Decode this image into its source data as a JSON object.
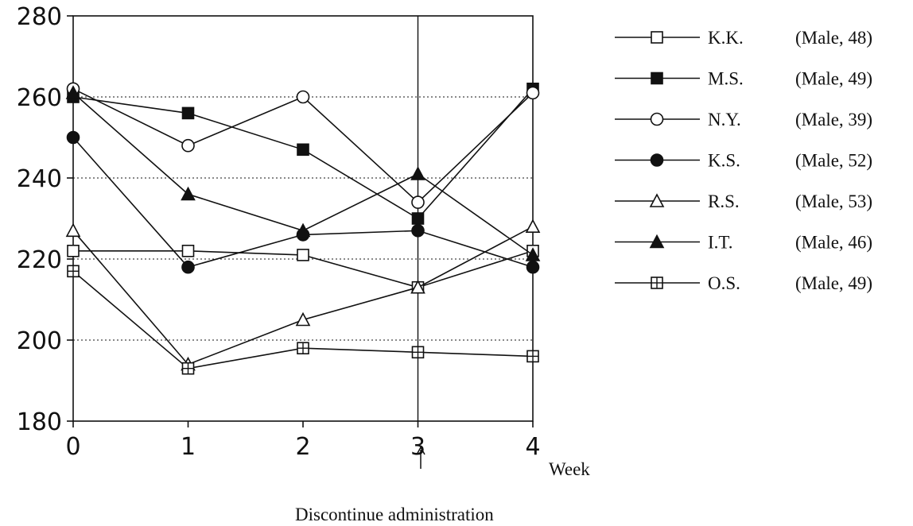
{
  "chart_data": {
    "type": "line",
    "xlabel": "Week",
    "annotation": "Discontinue administration",
    "x": [
      0,
      1,
      2,
      3,
      4
    ],
    "ylim": [
      180,
      280
    ],
    "yticks": [
      180,
      200,
      220,
      240,
      260,
      280
    ],
    "xticks": [
      0,
      1,
      2,
      3,
      4
    ],
    "grid": "horizontal dotted",
    "legend_position": "right",
    "series": [
      {
        "name": "K.K.",
        "note": "(Male, 48)",
        "marker": "open-square",
        "values": [
          222,
          222,
          221,
          213,
          222
        ]
      },
      {
        "name": "M.S.",
        "note": "(Male, 49)",
        "marker": "filled-square",
        "values": [
          260,
          256,
          247,
          230,
          262
        ]
      },
      {
        "name": "N.Y.",
        "note": "(Male, 39)",
        "marker": "open-circle",
        "values": [
          262,
          248,
          260,
          234,
          261
        ]
      },
      {
        "name": "K.S.",
        "note": "(Male, 52)",
        "marker": "filled-circle",
        "values": [
          250,
          218,
          226,
          227,
          218
        ]
      },
      {
        "name": "R.S.",
        "note": "(Male, 53)",
        "marker": "open-triangle",
        "values": [
          227,
          194,
          205,
          213,
          228
        ]
      },
      {
        "name": "I.T.",
        "note": "(Male, 46)",
        "marker": "filled-triangle",
        "values": [
          261,
          236,
          227,
          241,
          221
        ]
      },
      {
        "name": "O.S.",
        "note": "(Male, 49)",
        "marker": "crossed-square",
        "values": [
          217,
          193,
          198,
          197,
          196
        ]
      }
    ]
  }
}
